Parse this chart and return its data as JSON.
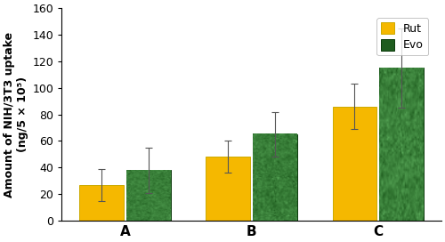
{
  "categories": [
    "A",
    "B",
    "C"
  ],
  "rut_values": [
    27,
    48,
    86
  ],
  "evo_values": [
    38,
    65,
    115
  ],
  "rut_errors": [
    12,
    12,
    17
  ],
  "evo_errors": [
    17,
    17,
    30
  ],
  "rut_color": "#F5B800",
  "evo_color_dark": "#1e5c1e",
  "evo_color_light": "#5aaa5a",
  "ylabel_line1": "Amount of NIH/3T3 uptake",
  "ylabel_line2": "(ng/5 × 10⁵)",
  "ylim": [
    0,
    160
  ],
  "yticks": [
    0,
    20,
    40,
    60,
    80,
    100,
    120,
    140,
    160
  ],
  "legend_rut": "Rut",
  "legend_evo": "Evo",
  "bar_width": 0.35,
  "x_positions": [
    0.5,
    1.5,
    2.5
  ],
  "figsize": [
    5.0,
    2.72
  ],
  "dpi": 100
}
